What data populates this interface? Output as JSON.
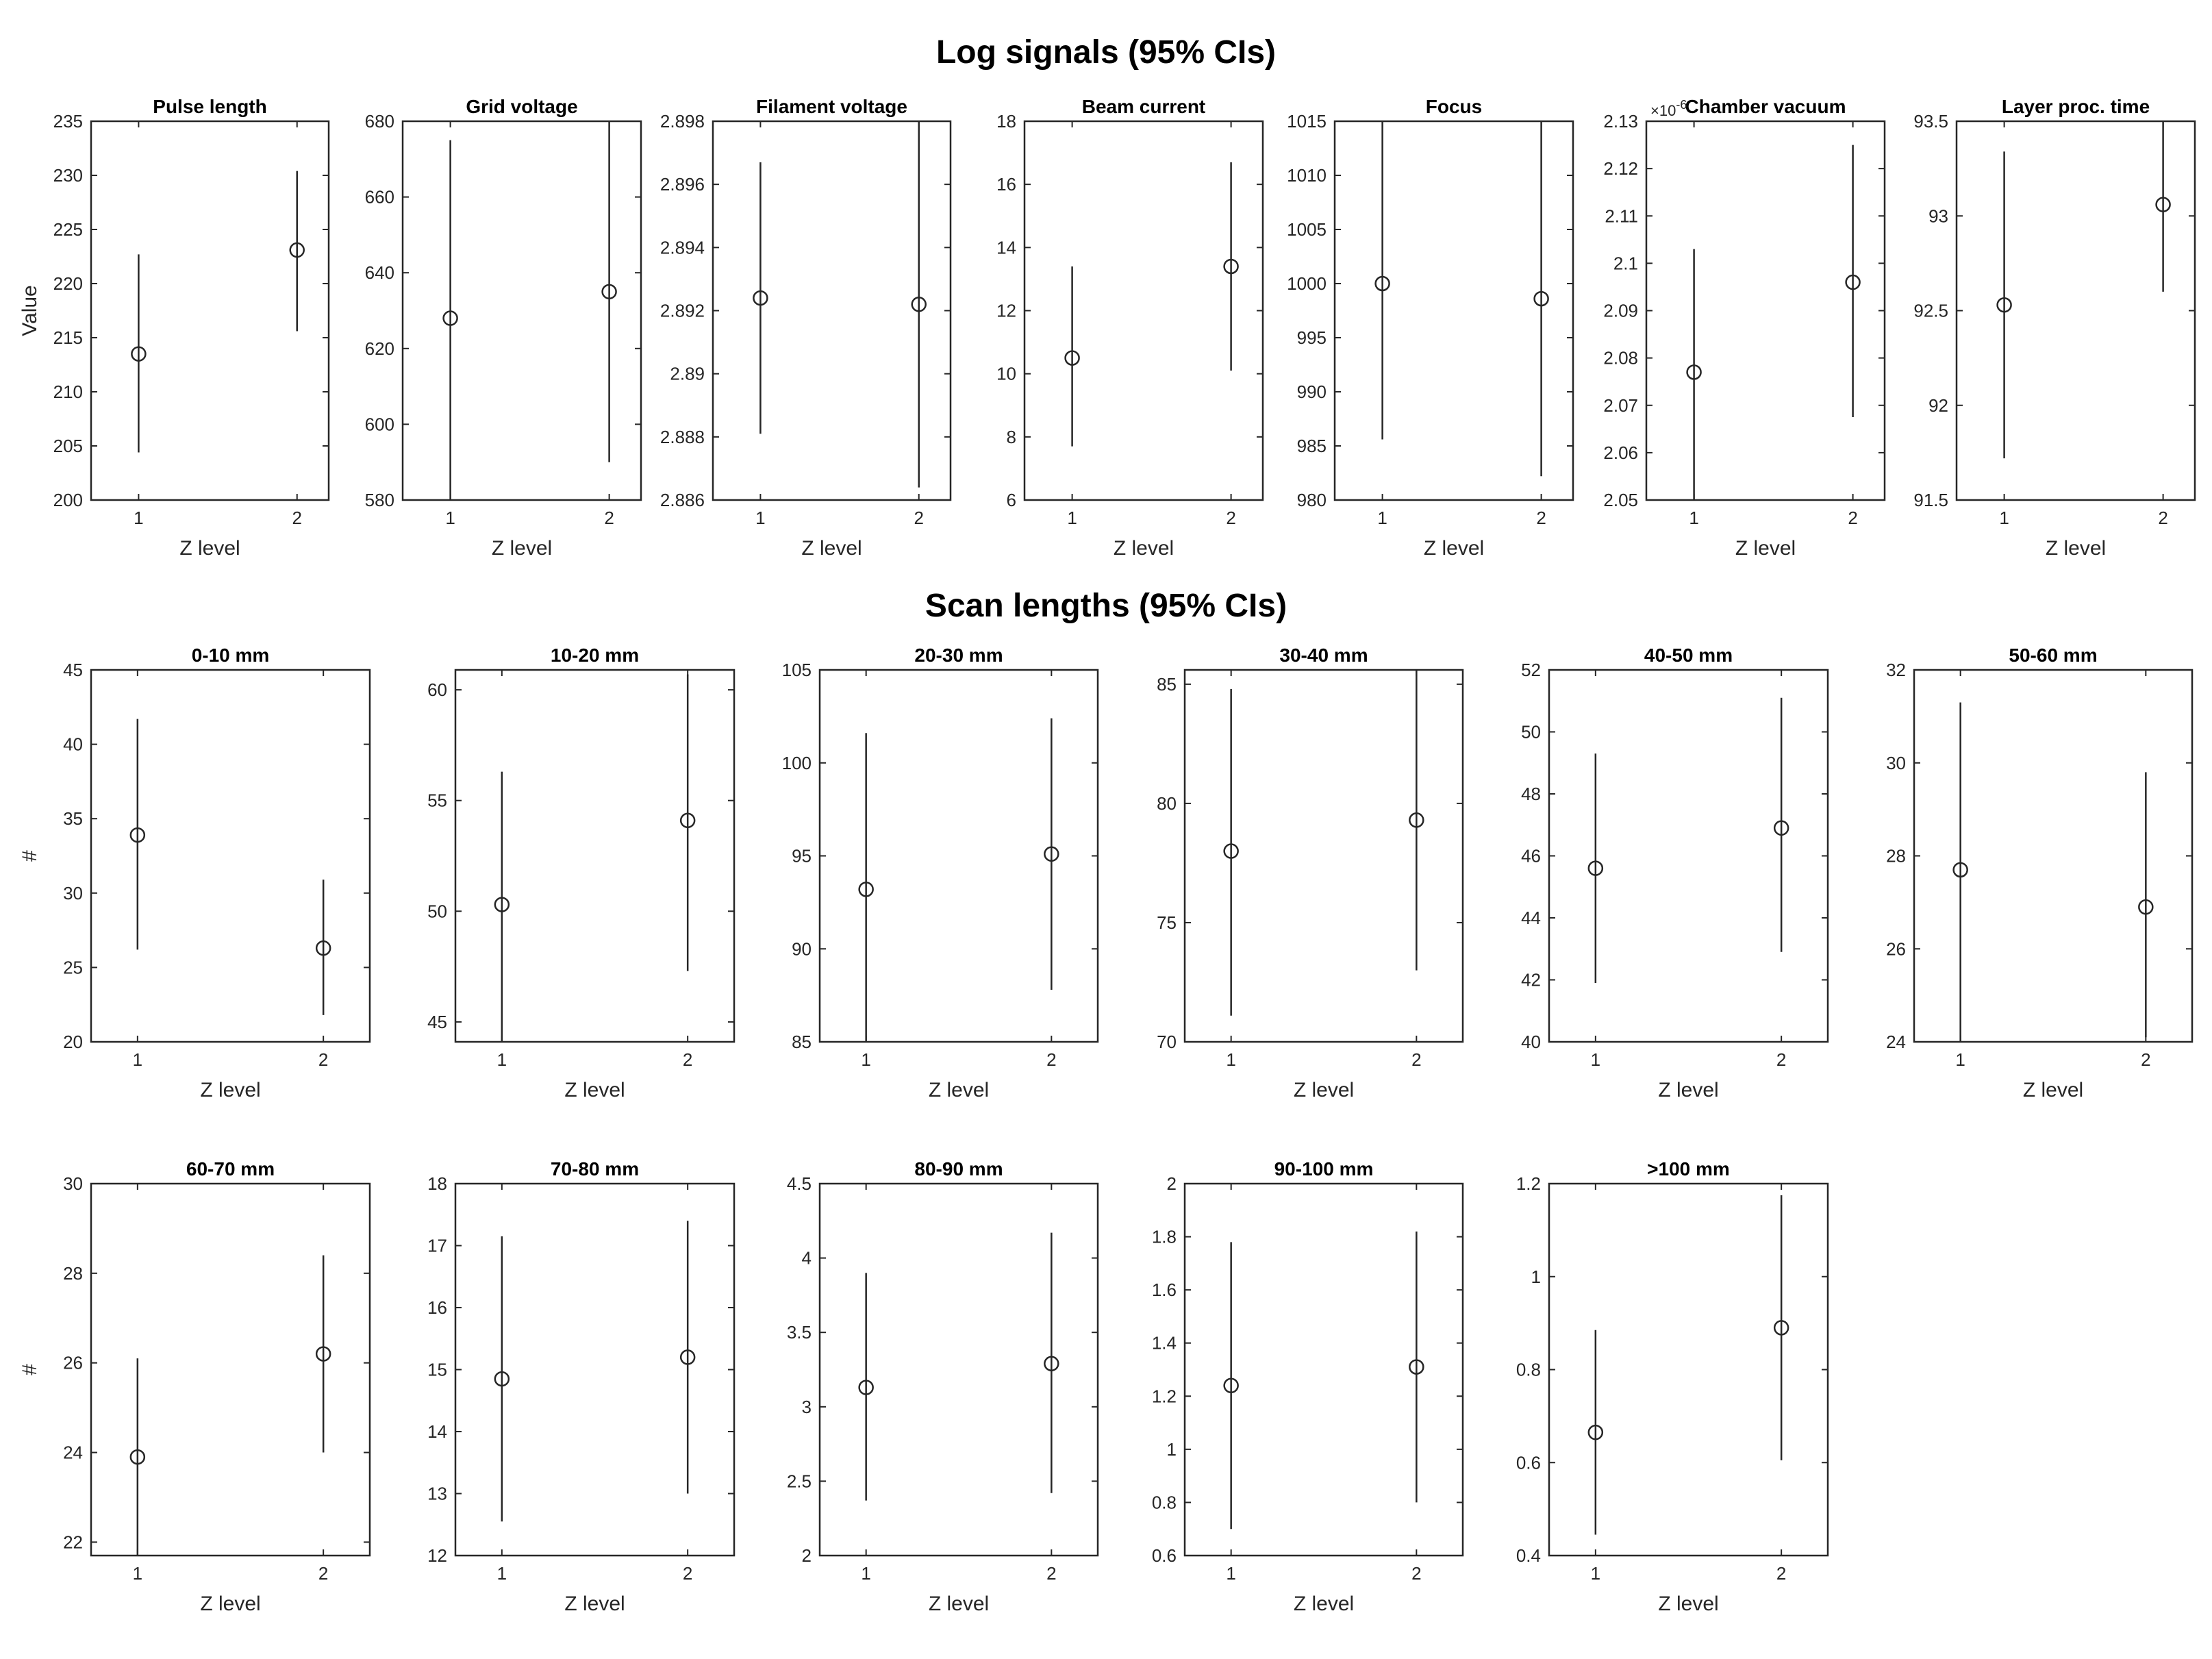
{
  "figure": {
    "sections": [
      {
        "key": "log",
        "title": "Log signals (95% CIs)"
      },
      {
        "key": "scan",
        "title": "Scan lengths (95% CIs)"
      }
    ]
  },
  "chart_data": [
    {
      "section": "log",
      "type": "scatter",
      "title": "Pulse length",
      "xlabel": "Z level",
      "ylabel": "Value",
      "x": [
        1,
        2
      ],
      "y": [
        213.5,
        223.1
      ],
      "ci_low": [
        204.4,
        215.6
      ],
      "ci_high": [
        222.7,
        230.4
      ],
      "ylim": [
        200,
        235
      ],
      "yticks": [
        200,
        205,
        210,
        215,
        220,
        225,
        230,
        235
      ],
      "ytick_labels": [
        "200",
        "205",
        "210",
        "215",
        "220",
        "225",
        "230",
        "235"
      ],
      "xlim": [
        0.7,
        2.2
      ]
    },
    {
      "section": "log",
      "type": "scatter",
      "title": "Grid voltage",
      "xlabel": "Z level",
      "ylabel": "",
      "x": [
        1,
        2
      ],
      "y": [
        628,
        635
      ],
      "ci_low": [
        580,
        590
      ],
      "ci_high": [
        675,
        680
      ],
      "ylim": [
        580,
        680
      ],
      "yticks": [
        580,
        600,
        620,
        640,
        660,
        680
      ],
      "ytick_labels": [
        "580",
        "600",
        "620",
        "640",
        "660",
        "680"
      ],
      "xlim": [
        0.7,
        2.2
      ]
    },
    {
      "section": "log",
      "type": "scatter",
      "title": "Filament voltage",
      "xlabel": "Z level",
      "ylabel": "",
      "x": [
        1,
        2
      ],
      "y": [
        2.8924,
        2.8922
      ],
      "ci_low": [
        2.8881,
        2.8864
      ],
      "ci_high": [
        2.8967,
        2.898
      ],
      "ylim": [
        2.886,
        2.898
      ],
      "yticks": [
        2.886,
        2.888,
        2.89,
        2.892,
        2.894,
        2.896,
        2.898
      ],
      "ytick_labels": [
        "2.886",
        "2.888",
        "2.89",
        "2.892",
        "2.894",
        "2.896",
        "2.898"
      ],
      "xlim": [
        0.7,
        2.2
      ]
    },
    {
      "section": "log",
      "type": "scatter",
      "title": "Beam current",
      "xlabel": "Z level",
      "ylabel": "",
      "x": [
        1,
        2
      ],
      "y": [
        10.5,
        13.4
      ],
      "ci_low": [
        7.7,
        10.1
      ],
      "ci_high": [
        13.4,
        16.7
      ],
      "ylim": [
        6,
        18
      ],
      "yticks": [
        6,
        8,
        10,
        12,
        14,
        16,
        18
      ],
      "ytick_labels": [
        "6",
        "8",
        "10",
        "12",
        "14",
        "16",
        "18"
      ],
      "xlim": [
        0.7,
        2.2
      ]
    },
    {
      "section": "log",
      "type": "scatter",
      "title": "Focus",
      "xlabel": "Z level",
      "ylabel": "",
      "x": [
        1,
        2
      ],
      "y": [
        1000,
        998.6
      ],
      "ci_low": [
        985.6,
        982.2
      ],
      "ci_high": [
        1015,
        1015
      ],
      "ylim": [
        980,
        1015
      ],
      "yticks": [
        980,
        985,
        990,
        995,
        1000,
        1005,
        1010,
        1015
      ],
      "ytick_labels": [
        "980",
        "985",
        "990",
        "995",
        "1000",
        "1005",
        "1010",
        "1015"
      ],
      "xlim": [
        0.7,
        2.2
      ]
    },
    {
      "section": "log",
      "type": "scatter",
      "title": "Chamber vacuum",
      "xlabel": "Z level",
      "ylabel": "",
      "exponent": "×10",
      "exponent_power": "-6",
      "x": [
        1,
        2
      ],
      "y": [
        2.077,
        2.096
      ],
      "ci_low": [
        2.05,
        2.0675
      ],
      "ci_high": [
        2.103,
        2.125
      ],
      "ylim": [
        2.05,
        2.13
      ],
      "yticks": [
        2.05,
        2.06,
        2.07,
        2.08,
        2.09,
        2.1,
        2.11,
        2.12,
        2.13
      ],
      "ytick_labels": [
        "2.05",
        "2.06",
        "2.07",
        "2.08",
        "2.09",
        "2.1",
        "2.11",
        "2.12",
        "2.13"
      ],
      "xlim": [
        0.7,
        2.2
      ]
    },
    {
      "section": "log",
      "type": "scatter",
      "title": "Layer proc. time",
      "xlabel": "Z level",
      "ylabel": "",
      "x": [
        1,
        2
      ],
      "y": [
        92.53,
        93.06
      ],
      "ci_low": [
        91.72,
        92.6
      ],
      "ci_high": [
        93.34,
        93.5
      ],
      "ylim": [
        91.5,
        93.5
      ],
      "yticks": [
        91.5,
        92,
        92.5,
        93,
        93.5
      ],
      "ytick_labels": [
        "91.5",
        "92",
        "92.5",
        "93",
        "93.5"
      ],
      "xlim": [
        0.7,
        2.2
      ]
    },
    {
      "section": "scan",
      "type": "scatter",
      "title": "0-10 mm",
      "xlabel": "Z level",
      "ylabel": "#",
      "x": [
        1,
        2
      ],
      "y": [
        33.9,
        26.3
      ],
      "ci_low": [
        26.2,
        21.8
      ],
      "ci_high": [
        41.7,
        30.9
      ],
      "ylim": [
        20,
        45
      ],
      "yticks": [
        20,
        25,
        30,
        35,
        40,
        45
      ],
      "ytick_labels": [
        "20",
        "25",
        "30",
        "35",
        "40",
        "45"
      ],
      "xlim": [
        0.75,
        2.25
      ]
    },
    {
      "section": "scan",
      "type": "scatter",
      "title": "10-20 mm",
      "xlabel": "Z level",
      "ylabel": "",
      "x": [
        1,
        2
      ],
      "y": [
        50.3,
        54.1
      ],
      "ci_low": [
        44.1,
        47.3
      ],
      "ci_high": [
        56.3,
        60.7
      ],
      "ylim": [
        44.1,
        60.9
      ],
      "yticks": [
        45,
        50,
        55,
        60
      ],
      "ytick_labels": [
        "45",
        "50",
        "55",
        "60"
      ],
      "xlim": [
        0.75,
        2.25
      ]
    },
    {
      "section": "scan",
      "type": "scatter",
      "title": "20-30 mm",
      "xlabel": "Z level",
      "ylabel": "",
      "x": [
        1,
        2
      ],
      "y": [
        93.2,
        95.1
      ],
      "ci_low": [
        85,
        87.8
      ],
      "ci_high": [
        101.6,
        102.4
      ],
      "ylim": [
        85,
        105
      ],
      "yticks": [
        85,
        90,
        95,
        100,
        105
      ],
      "ytick_labels": [
        "85",
        "90",
        "95",
        "100",
        "105"
      ],
      "xlim": [
        0.75,
        2.25
      ]
    },
    {
      "section": "scan",
      "type": "scatter",
      "title": "30-40 mm",
      "xlabel": "Z level",
      "ylabel": "",
      "x": [
        1,
        2
      ],
      "y": [
        78,
        79.3
      ],
      "ci_low": [
        71.1,
        73
      ],
      "ci_high": [
        84.8,
        85.6
      ],
      "ylim": [
        70,
        85.6
      ],
      "yticks": [
        70,
        75,
        80,
        85
      ],
      "ytick_labels": [
        "70",
        "75",
        "80",
        "85"
      ],
      "xlim": [
        0.75,
        2.25
      ]
    },
    {
      "section": "scan",
      "type": "scatter",
      "title": "40-50 mm",
      "xlabel": "Z level",
      "ylabel": "",
      "x": [
        1,
        2
      ],
      "y": [
        45.6,
        46.9
      ],
      "ci_low": [
        41.9,
        42.9
      ],
      "ci_high": [
        49.3,
        51.1
      ],
      "ylim": [
        40,
        52
      ],
      "yticks": [
        40,
        42,
        44,
        46,
        48,
        50,
        52
      ],
      "ytick_labels": [
        "40",
        "42",
        "44",
        "46",
        "48",
        "50",
        "52"
      ],
      "xlim": [
        0.75,
        2.25
      ]
    },
    {
      "section": "scan",
      "type": "scatter",
      "title": "50-60 mm",
      "xlabel": "Z level",
      "ylabel": "",
      "x": [
        1,
        2
      ],
      "y": [
        27.7,
        26.9
      ],
      "ci_low": [
        24,
        24.1
      ],
      "ci_high": [
        31.3,
        29.8
      ],
      "ylim": [
        24,
        32
      ],
      "yticks": [
        24,
        26,
        28,
        30,
        32
      ],
      "ytick_labels": [
        "24",
        "26",
        "28",
        "30",
        "32"
      ],
      "xlim": [
        0.75,
        2.25
      ]
    },
    {
      "section": "scan",
      "type": "scatter",
      "title": "60-70 mm",
      "xlabel": "Z level",
      "ylabel": "#",
      "x": [
        1,
        2
      ],
      "y": [
        23.9,
        26.2
      ],
      "ci_low": [
        21.7,
        24
      ],
      "ci_high": [
        26.1,
        28.4
      ],
      "ylim": [
        21.7,
        30
      ],
      "yticks": [
        22,
        24,
        26,
        28,
        30
      ],
      "ytick_labels": [
        "22",
        "24",
        "26",
        "28",
        "30"
      ],
      "xlim": [
        0.75,
        2.25
      ]
    },
    {
      "section": "scan",
      "type": "scatter",
      "title": "70-80 mm",
      "xlabel": "Z level",
      "ylabel": "",
      "x": [
        1,
        2
      ],
      "y": [
        14.85,
        15.2
      ],
      "ci_low": [
        12.55,
        13
      ],
      "ci_high": [
        17.15,
        17.4
      ],
      "ylim": [
        12,
        18
      ],
      "yticks": [
        12,
        13,
        14,
        15,
        16,
        17,
        18
      ],
      "ytick_labels": [
        "12",
        "13",
        "14",
        "15",
        "16",
        "17",
        "18"
      ],
      "xlim": [
        0.75,
        2.25
      ]
    },
    {
      "section": "scan",
      "type": "scatter",
      "title": "80-90 mm",
      "xlabel": "Z level",
      "ylabel": "",
      "x": [
        1,
        2
      ],
      "y": [
        3.13,
        3.29
      ],
      "ci_low": [
        2.37,
        2.42
      ],
      "ci_high": [
        3.9,
        4.17
      ],
      "ylim": [
        2,
        4.5
      ],
      "yticks": [
        2,
        2.5,
        3,
        3.5,
        4,
        4.5
      ],
      "ytick_labels": [
        "2",
        "2.5",
        "3",
        "3.5",
        "4",
        "4.5"
      ],
      "xlim": [
        0.75,
        2.25
      ]
    },
    {
      "section": "scan",
      "type": "scatter",
      "title": "90-100 mm",
      "xlabel": "Z level",
      "ylabel": "",
      "x": [
        1,
        2
      ],
      "y": [
        1.24,
        1.31
      ],
      "ci_low": [
        0.7,
        0.8
      ],
      "ci_high": [
        1.78,
        1.82
      ],
      "ylim": [
        0.6,
        2
      ],
      "yticks": [
        0.6,
        0.8,
        1,
        1.2,
        1.4,
        1.6,
        1.8,
        2
      ],
      "ytick_labels": [
        "0.6",
        "0.8",
        "1",
        "1.2",
        "1.4",
        "1.6",
        "1.8",
        "2"
      ],
      "xlim": [
        0.75,
        2.25
      ]
    },
    {
      "section": "scan",
      "type": "scatter",
      "title": ">100 mm",
      "xlabel": "Z level",
      "ylabel": "",
      "x": [
        1,
        2
      ],
      "y": [
        0.665,
        0.89
      ],
      "ci_low": [
        0.445,
        0.605
      ],
      "ci_high": [
        0.885,
        1.175
      ],
      "ylim": [
        0.4,
        1.2
      ],
      "yticks": [
        0.4,
        0.6,
        0.8,
        1,
        1.2
      ],
      "ytick_labels": [
        "0.4",
        "0.6",
        "0.8",
        "1",
        "1.2"
      ],
      "xlim": [
        0.75,
        2.25
      ]
    }
  ]
}
